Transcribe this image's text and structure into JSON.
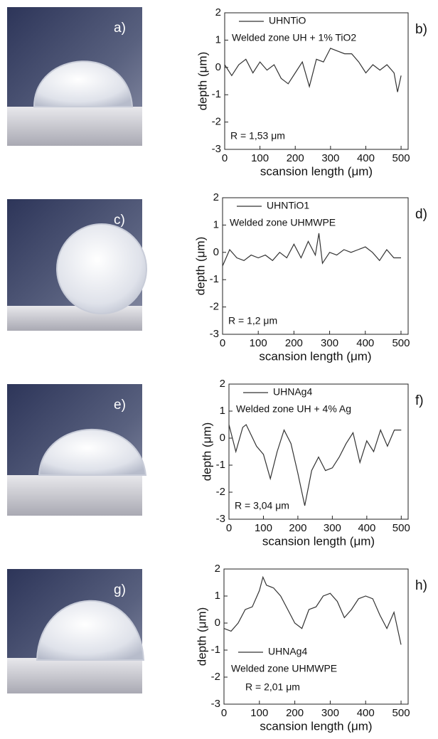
{
  "chart_data": [
    {
      "type": "line",
      "image_label": "a)",
      "panel_label": "b)",
      "xlabel": "scansion length (μm)",
      "ylabel": "depth (μm)",
      "xlim": [
        0,
        520
      ],
      "ylim": [
        -3,
        2
      ],
      "xticks": [
        0,
        100,
        200,
        300,
        400,
        500
      ],
      "yticks": [
        -3,
        -2,
        -1,
        0,
        1,
        2
      ],
      "legend": "upper left",
      "annotations": [
        "Welded zone UH + 1% TiO2",
        "R = 1,53 μm"
      ],
      "x": [
        0,
        20,
        40,
        60,
        80,
        100,
        120,
        140,
        160,
        180,
        200,
        220,
        240,
        260,
        280,
        300,
        320,
        340,
        360,
        380,
        400,
        420,
        440,
        460,
        480,
        490,
        500
      ],
      "series": [
        {
          "name": "UHNTiO",
          "color": "#333333",
          "values": [
            0.1,
            -0.3,
            0.1,
            0.3,
            -0.2,
            0.2,
            -0.1,
            0.1,
            -0.4,
            -0.6,
            -0.2,
            0.2,
            -0.7,
            0.3,
            0.2,
            0.7,
            0.6,
            0.5,
            0.5,
            0.2,
            -0.2,
            0.1,
            -0.1,
            0.1,
            -0.2,
            -0.9,
            -0.3
          ]
        }
      ]
    },
    {
      "type": "line",
      "image_label": "c)",
      "panel_label": "d)",
      "xlabel": "scansion length (μm)",
      "ylabel": "depth (μm)",
      "xlim": [
        0,
        520
      ],
      "ylim": [
        -3,
        2
      ],
      "xticks": [
        0,
        100,
        200,
        300,
        400,
        500
      ],
      "yticks": [
        -3,
        -2,
        -1,
        0,
        1,
        2
      ],
      "legend": "upper left",
      "annotations": [
        "Welded zone UHMWPE",
        "R = 1,2 μm"
      ],
      "x": [
        0,
        20,
        40,
        60,
        80,
        100,
        120,
        140,
        160,
        180,
        200,
        220,
        240,
        260,
        270,
        280,
        300,
        320,
        340,
        360,
        380,
        400,
        420,
        440,
        460,
        480,
        500
      ],
      "series": [
        {
          "name": "UHNTiO1",
          "color": "#333333",
          "values": [
            -0.5,
            0.1,
            -0.2,
            -0.3,
            -0.1,
            -0.2,
            -0.1,
            -0.3,
            0.0,
            -0.2,
            0.3,
            -0.2,
            0.4,
            -0.1,
            0.7,
            -0.4,
            0.0,
            -0.1,
            0.1,
            0.0,
            0.1,
            0.2,
            0.0,
            -0.3,
            0.1,
            -0.2,
            -0.2
          ]
        }
      ]
    },
    {
      "type": "line",
      "image_label": "e)",
      "panel_label": "f)",
      "xlabel": "scansion length (μm)",
      "ylabel": "depth (μm)",
      "xlim": [
        0,
        520
      ],
      "ylim": [
        -3,
        2
      ],
      "xticks": [
        0,
        100,
        200,
        300,
        400,
        500
      ],
      "yticks": [
        -3,
        -2,
        -1,
        0,
        1,
        2
      ],
      "legend": "upper left",
      "annotations": [
        "Welded zone UH + 4% Ag",
        "R = 3,04 μm"
      ],
      "x": [
        0,
        20,
        40,
        50,
        80,
        100,
        120,
        140,
        160,
        180,
        200,
        220,
        240,
        260,
        280,
        300,
        320,
        340,
        360,
        380,
        400,
        420,
        440,
        460,
        480,
        500
      ],
      "series": [
        {
          "name": "UHNAg4",
          "color": "#333333",
          "values": [
            0.5,
            -0.5,
            0.4,
            0.5,
            -0.3,
            -0.6,
            -1.5,
            -0.5,
            0.3,
            -0.2,
            -1.3,
            -2.5,
            -1.2,
            -0.7,
            -1.2,
            -1.1,
            -0.7,
            -0.2,
            0.2,
            -0.9,
            -0.1,
            -0.5,
            0.3,
            -0.3,
            0.3,
            0.3
          ]
        }
      ]
    },
    {
      "type": "line",
      "image_label": "g)",
      "panel_label": "h)",
      "xlabel": "scansion length (μm)",
      "ylabel": "depth (μm)",
      "xlim": [
        0,
        520
      ],
      "ylim": [
        -3,
        2
      ],
      "xticks": [
        0,
        100,
        200,
        300,
        400,
        500
      ],
      "yticks": [
        -3,
        -2,
        -1,
        0,
        1,
        2
      ],
      "legend": "center left",
      "annotations": [
        "Welded zone UHMWPE",
        "R = 2,01 μm"
      ],
      "x": [
        0,
        20,
        40,
        60,
        80,
        100,
        110,
        120,
        140,
        160,
        180,
        200,
        220,
        240,
        260,
        280,
        300,
        320,
        340,
        360,
        380,
        400,
        420,
        440,
        460,
        480,
        500
      ],
      "series": [
        {
          "name": "UHNAg4",
          "color": "#333333",
          "values": [
            -0.2,
            -0.3,
            0.0,
            0.5,
            0.6,
            1.2,
            1.7,
            1.4,
            1.3,
            1.0,
            0.5,
            0.0,
            -0.2,
            0.5,
            0.6,
            1.0,
            1.1,
            0.8,
            0.2,
            0.5,
            0.9,
            1.0,
            0.9,
            0.3,
            -0.2,
            0.4,
            -0.8
          ]
        }
      ]
    }
  ]
}
